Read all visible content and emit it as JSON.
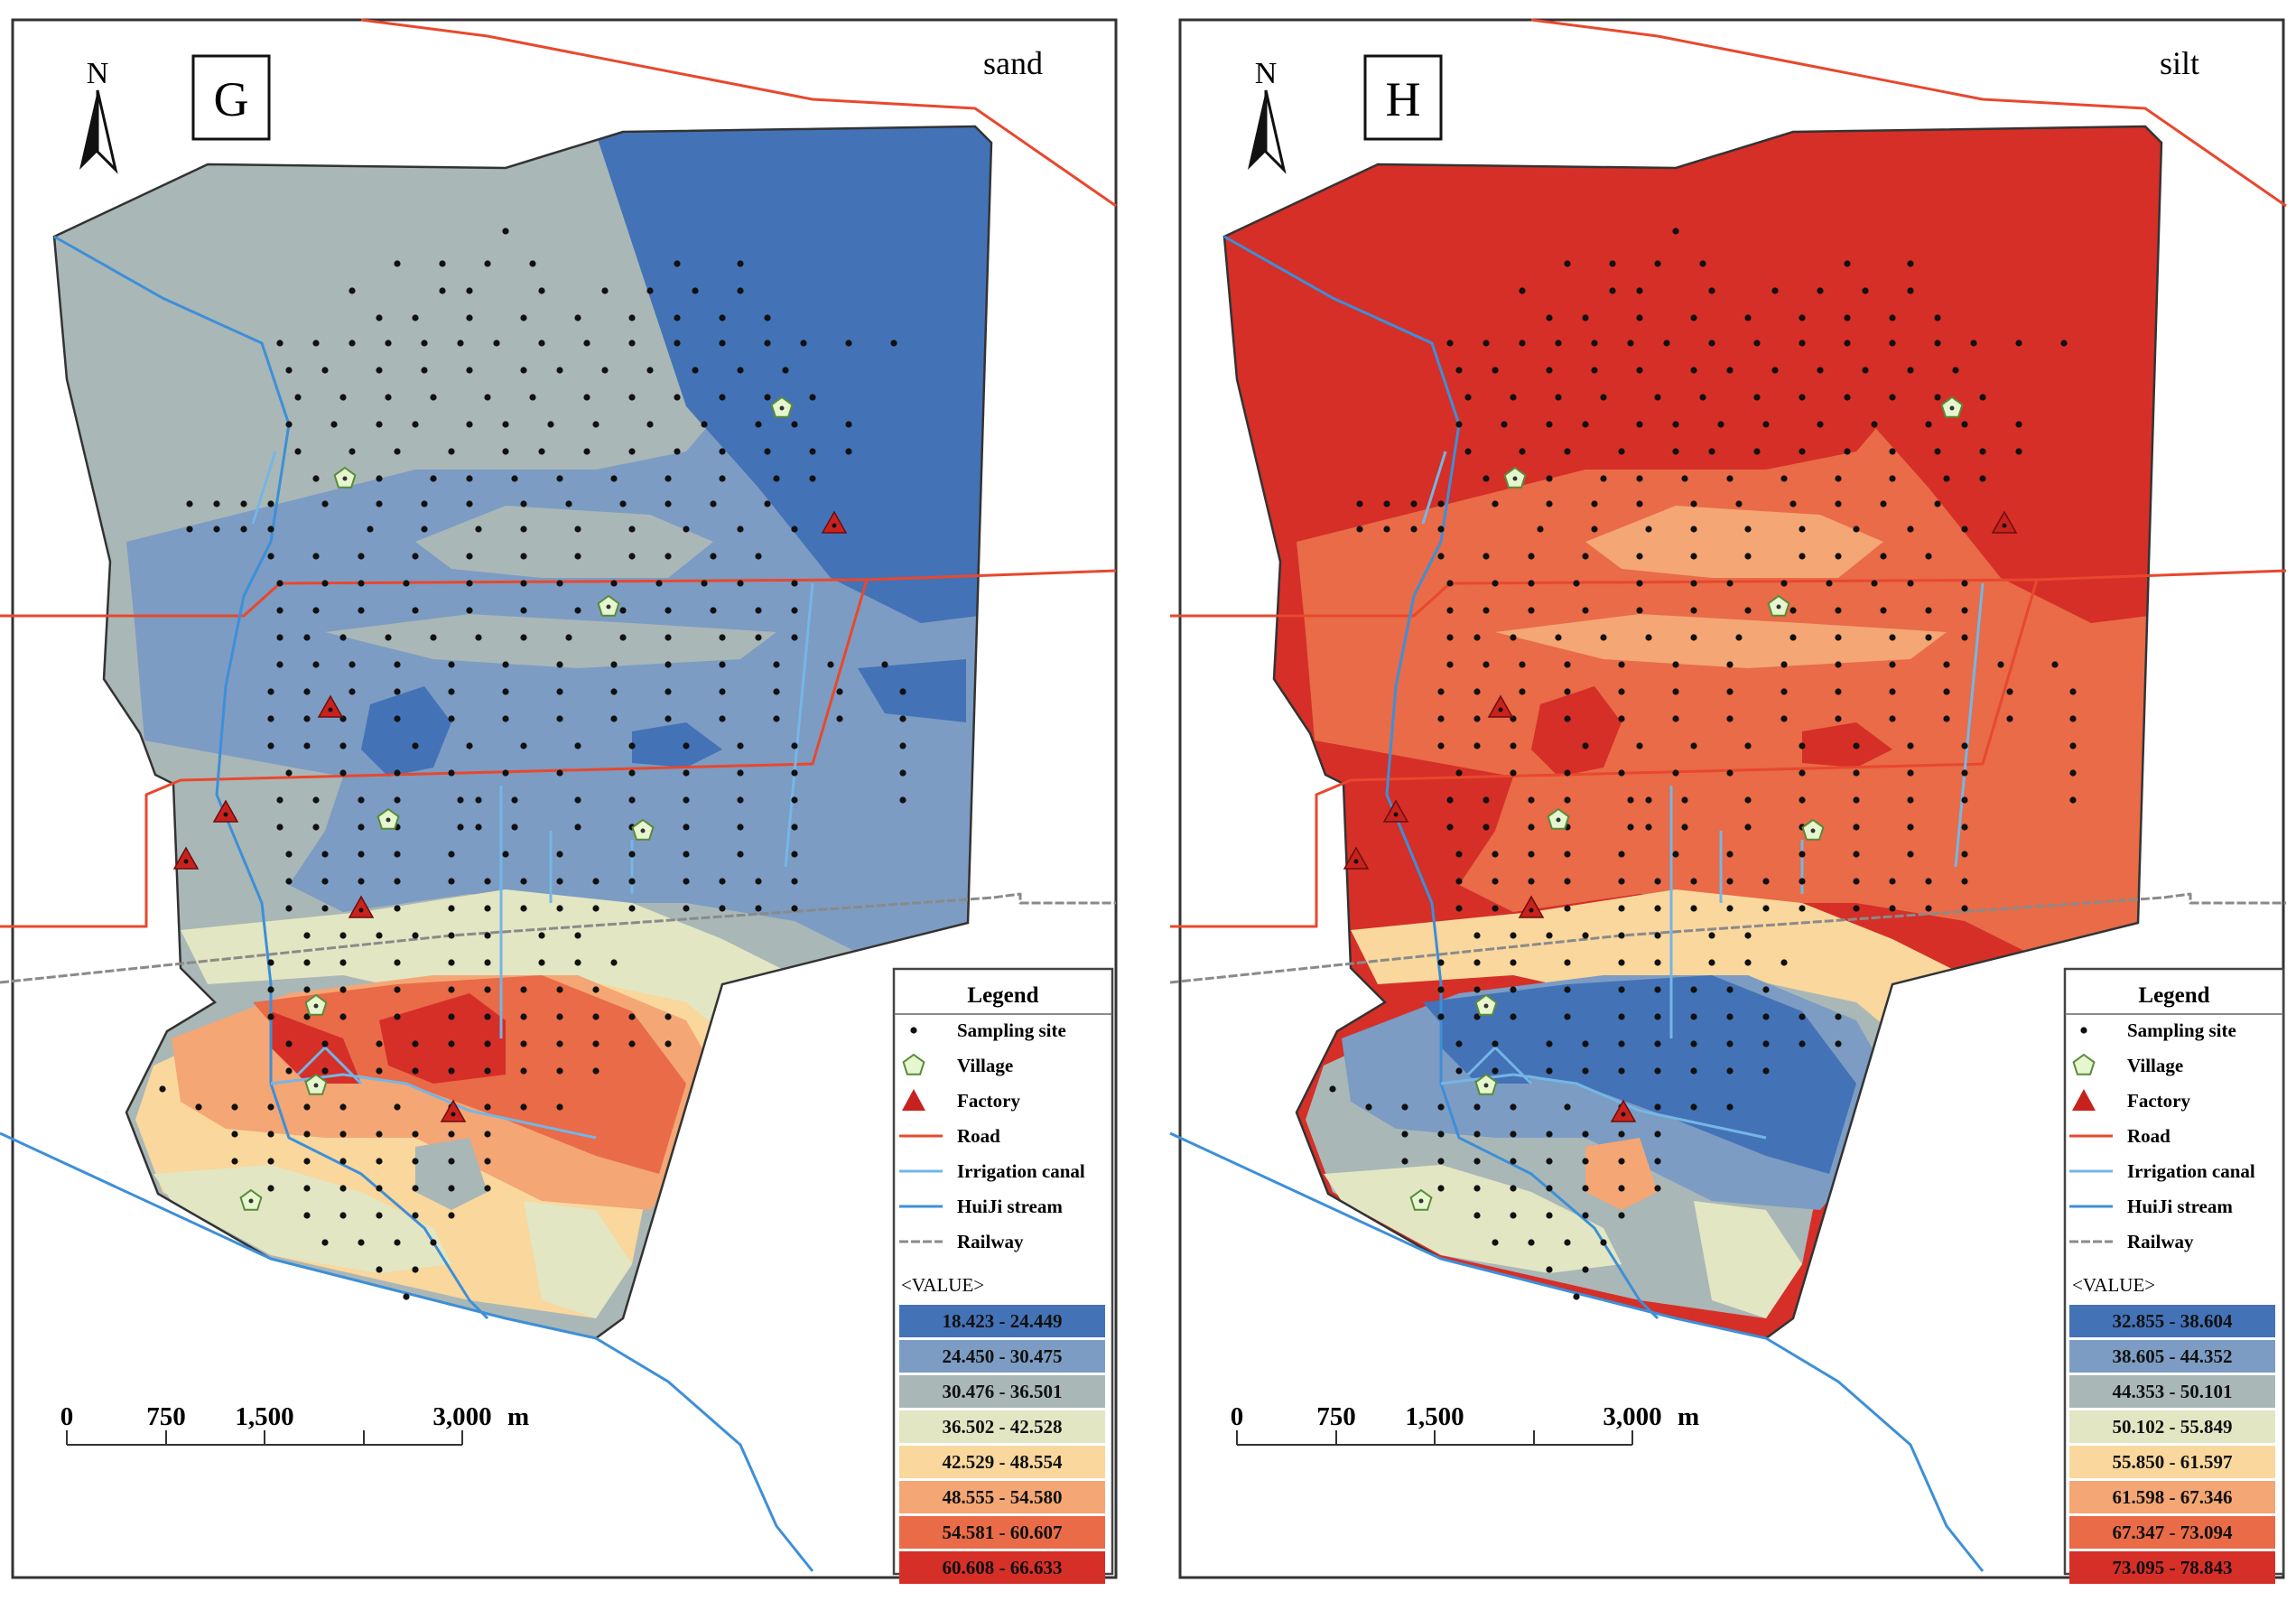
{
  "panels": [
    {
      "id": "G",
      "panel_label": "G",
      "variable": "sand",
      "north_label": "N",
      "legend": {
        "title": "Legend",
        "symbols": [
          {
            "label": "Sampling site",
            "kind": "dot"
          },
          {
            "label": "Village",
            "kind": "pentagon"
          },
          {
            "label": "Factory",
            "kind": "triangle"
          },
          {
            "label": "Road",
            "kind": "line-road"
          },
          {
            "label": "Irrigation canal",
            "kind": "line-canal"
          },
          {
            "label": "HuiJi stream",
            "kind": "line-stream"
          },
          {
            "label": "Railway",
            "kind": "line-rail"
          }
        ],
        "value_header": "<VALUE>",
        "classes": [
          {
            "label": "18.423 - 24.449",
            "color": "#4472b6"
          },
          {
            "label": "24.450 - 30.475",
            "color": "#7c9cc3"
          },
          {
            "label": "30.476 - 36.501",
            "color": "#aab7b7"
          },
          {
            "label": "36.502 - 42.528",
            "color": "#e2e6c3"
          },
          {
            "label": "42.529 - 48.554",
            "color": "#f9d79d"
          },
          {
            "label": "48.555 - 54.580",
            "color": "#f4a675"
          },
          {
            "label": "54.581 - 60.607",
            "color": "#e96b47"
          },
          {
            "label": "60.608 - 66.633",
            "color": "#d52f28"
          }
        ]
      },
      "scale_bar": {
        "labels": [
          "0",
          "750",
          "1,500",
          "3,000"
        ],
        "unit": "m"
      }
    },
    {
      "id": "H",
      "panel_label": "H",
      "variable": "silt",
      "north_label": "N",
      "legend": {
        "title": "Legend",
        "symbols": [
          {
            "label": "Sampling site",
            "kind": "dot"
          },
          {
            "label": "Village",
            "kind": "pentagon"
          },
          {
            "label": "Factory",
            "kind": "triangle"
          },
          {
            "label": "Road",
            "kind": "line-road"
          },
          {
            "label": "Irrigation canal",
            "kind": "line-canal"
          },
          {
            "label": "HuiJi stream",
            "kind": "line-stream"
          },
          {
            "label": "Railway",
            "kind": "line-rail"
          }
        ],
        "value_header": "<VALUE>",
        "classes": [
          {
            "label": "32.855 - 38.604",
            "color": "#4472b6"
          },
          {
            "label": "38.605 - 44.352",
            "color": "#7c9cc3"
          },
          {
            "label": "44.353 - 50.101",
            "color": "#aab7b7"
          },
          {
            "label": "50.102 - 55.849",
            "color": "#e2e6c3"
          },
          {
            "label": "55.850 - 61.597",
            "color": "#f9d79d"
          },
          {
            "label": "61.598 - 67.346",
            "color": "#f4a675"
          },
          {
            "label": "67.347 - 73.094",
            "color": "#e96b47"
          },
          {
            "label": "73.095 - 78.843",
            "color": "#d52f28"
          }
        ]
      },
      "scale_bar": {
        "labels": [
          "0",
          "750",
          "1,500",
          "3,000"
        ],
        "unit": "m"
      }
    }
  ],
  "colors": {
    "road": "#e8482e",
    "canal": "#74b6e6",
    "stream": "#3d8fd8",
    "railway": "#8a8a8a",
    "village_fill": "#e6f7cf",
    "village_stroke": "#5a8a3a",
    "factory_fill": "#c8221e"
  }
}
